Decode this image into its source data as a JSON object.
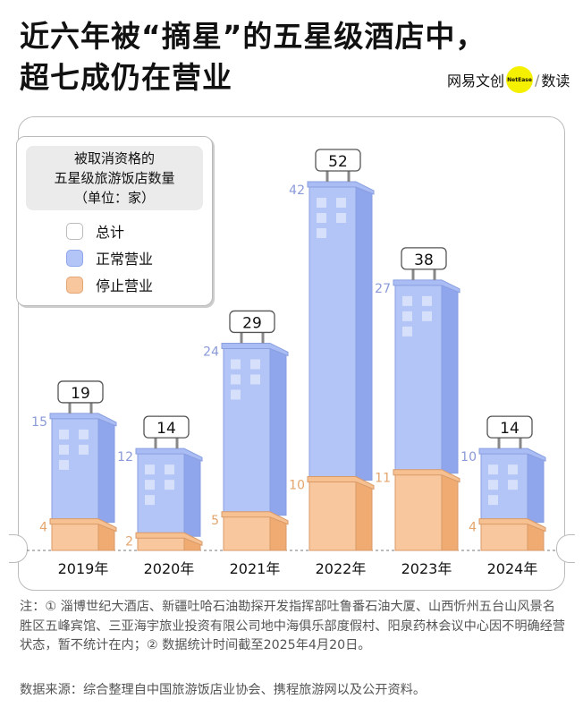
{
  "title_lines": [
    "近六年被“摘星”的五星级酒店中，",
    "超七成仍在营业"
  ],
  "logo": {
    "brand": "网易文创",
    "badge": "NetEase",
    "separator": "/",
    "sub": "数读"
  },
  "colors": {
    "operating": "#b3c4f6",
    "operating_side": "#8fa5ec",
    "closed": "#f9c79d",
    "closed_side": "#efab72",
    "total": "#ffffff",
    "logo_dot": "#f5f000"
  },
  "legend": {
    "title_lines": [
      "被取消资格的",
      "五星级旅游饭店数量",
      "（单位：家）"
    ],
    "items": [
      {
        "label": "总计",
        "color": "#ffffff"
      },
      {
        "label": "正常营业",
        "color": "#b3c4f6"
      },
      {
        "label": "停止营业",
        "color": "#f9c79d"
      }
    ]
  },
  "chart_data": {
    "type": "bar",
    "stacked": true,
    "categories": [
      "2019年",
      "2020年",
      "2021年",
      "2022年",
      "2023年",
      "2024年"
    ],
    "series": [
      {
        "name": "停止营业",
        "values": [
          4,
          2,
          5,
          10,
          11,
          4
        ]
      },
      {
        "name": "正常营业",
        "values": [
          15,
          12,
          24,
          42,
          27,
          10
        ]
      }
    ],
    "totals": [
      19,
      14,
      29,
      52,
      38,
      14
    ],
    "total_label": "总计",
    "ylim": [
      0,
      52
    ]
  },
  "notes": "注：① 淄博世纪大酒店、新疆吐哈石油勘探开发指挥部吐鲁番石油大厦、山西忻州五台山风景名胜区五峰宾馆、三亚海宇旅业投资有限公司地中海俱乐部度假村、阳泉药林会议中心因不明确经营状态，暂不统计在内；② 数据统计时间截至2025年4月20日。",
  "source": "数据来源：综合整理自中国旅游饭店业协会、携程旅游网以及公开资料。"
}
